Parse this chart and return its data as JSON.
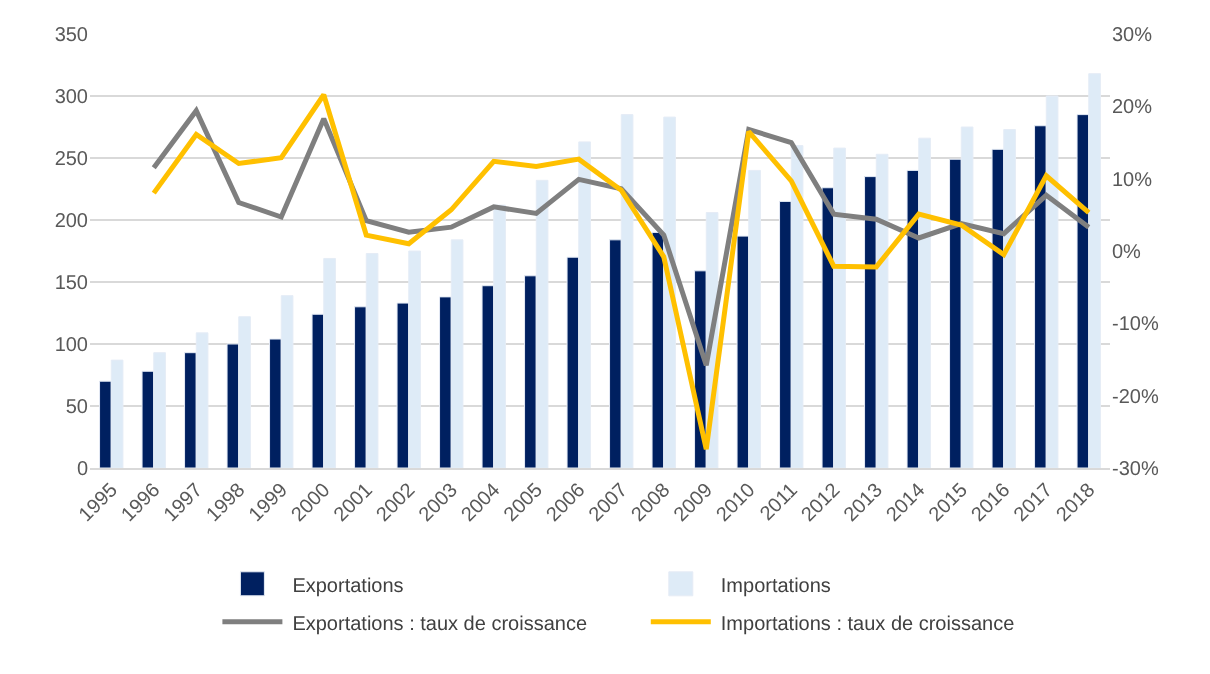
{
  "chart_data": {
    "type": "bar",
    "categories": [
      "1995",
      "1996",
      "1997",
      "1998",
      "1999",
      "2000",
      "2001",
      "2002",
      "2003",
      "2004",
      "2005",
      "2006",
      "2007",
      "2008",
      "2009",
      "2010",
      "2011",
      "2012",
      "2013",
      "2014",
      "2015",
      "2016",
      "2017",
      "2018"
    ],
    "series": [
      {
        "name": "Exportations",
        "color": "#002060",
        "values": [
          70,
          78,
          93,
          100,
          104,
          124,
          130,
          133,
          138,
          147,
          155,
          170,
          184,
          190,
          159,
          187,
          215,
          226,
          235,
          240,
          249,
          257,
          276,
          285
        ]
      },
      {
        "name": "Importations",
        "color": "#deebf7",
        "values": [
          87,
          93,
          109,
          122,
          139,
          169,
          173,
          175,
          184,
          212,
          232,
          263,
          285,
          283,
          206,
          240,
          260,
          258,
          253,
          266,
          275,
          273,
          300,
          318
        ]
      },
      {
        "name": "Exportations : taux de croissance",
        "type": "line",
        "axis": "y2",
        "color": "#7f7f7f",
        "values": [
          null,
          11.5,
          19.4,
          6.7,
          4.7,
          18.3,
          4.2,
          2.6,
          3.3,
          6.1,
          5.2,
          9.9,
          8.6,
          2.2,
          -15.8,
          16.8,
          15.0,
          5.1,
          4.4,
          1.8,
          3.8,
          2.4,
          7.7,
          3.3
        ]
      },
      {
        "name": "Importations : taux de croissance",
        "type": "line",
        "axis": "y2",
        "color": "#ffc000",
        "values": [
          null,
          8.0,
          16.1,
          12.1,
          12.9,
          21.6,
          2.2,
          1.0,
          5.7,
          12.4,
          11.7,
          12.7,
          8.4,
          -0.8,
          -27.4,
          16.5,
          9.7,
          -2.1,
          -2.2,
          5.1,
          3.6,
          -0.5,
          10.4,
          5.3
        ]
      }
    ],
    "ylim": [
      0,
      350
    ],
    "yticks": [
      0,
      50,
      100,
      150,
      200,
      250,
      300,
      350
    ],
    "y2lim": [
      -30,
      30
    ],
    "y2ticks": [
      {
        "value": -30,
        "label": "-30%"
      },
      {
        "value": -20,
        "label": "-20%"
      },
      {
        "value": -10,
        "label": "-10%"
      },
      {
        "value": 0,
        "label": "0%"
      },
      {
        "value": 10,
        "label": "10%"
      },
      {
        "value": 20,
        "label": "20%"
      },
      {
        "value": 30,
        "label": "30%"
      }
    ],
    "grid": "y",
    "legend": "bottom",
    "marker": "none",
    "line_style": "solid"
  }
}
